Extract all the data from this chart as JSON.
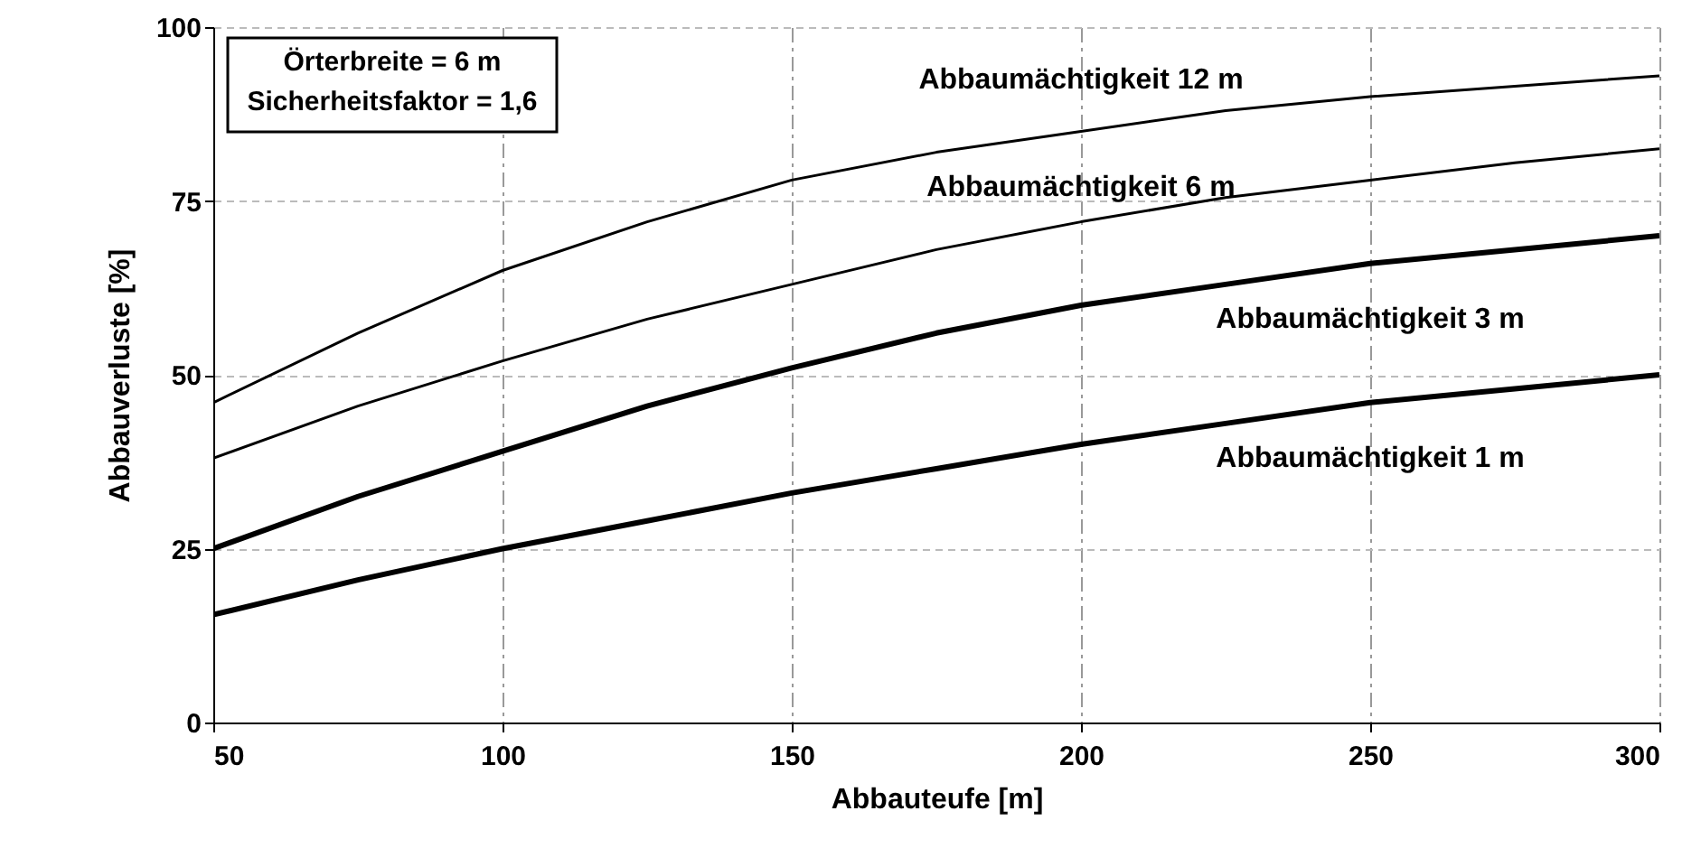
{
  "chart_data": {
    "type": "line",
    "xlabel": "Abbauteufe [m]",
    "ylabel": "Abbauverluste [%]",
    "x": [
      50,
      75,
      100,
      125,
      150,
      175,
      200,
      225,
      250,
      275,
      300
    ],
    "series": [
      {
        "name": "Abbaumächtigkeit 12 m",
        "color": "#000000",
        "values": [
          46,
          56,
          65,
          72,
          78,
          82,
          85,
          88,
          90,
          91.5,
          93
        ]
      },
      {
        "name": "Abbaumächtigkeit 6 m",
        "color": "#000000",
        "values": [
          38,
          45.5,
          52,
          58,
          63,
          68,
          72,
          75.5,
          78,
          80.5,
          82.5
        ]
      },
      {
        "name": "Abbaumächtigkeit 3 m",
        "color": "#000000",
        "values": [
          25,
          32.5,
          39,
          45.5,
          51,
          56,
          60,
          63,
          66,
          68,
          70
        ]
      },
      {
        "name": "Abbaumächtigkeit 1 m",
        "color": "#000000",
        "values": [
          15.5,
          20.5,
          25,
          29,
          33,
          36.5,
          40,
          43,
          46,
          48,
          50
        ]
      }
    ],
    "xlim": [
      50,
      300
    ],
    "xticks": [
      50,
      100,
      150,
      200,
      250,
      300
    ],
    "ylim": [
      0,
      100
    ],
    "yticks": [
      0,
      25,
      50,
      75,
      100
    ],
    "grid": true,
    "marker": "none",
    "line_style": "solid",
    "annotations": [
      "Örterbreite = 6 m",
      "Sicherheitsfaktor = 1,6"
    ]
  }
}
